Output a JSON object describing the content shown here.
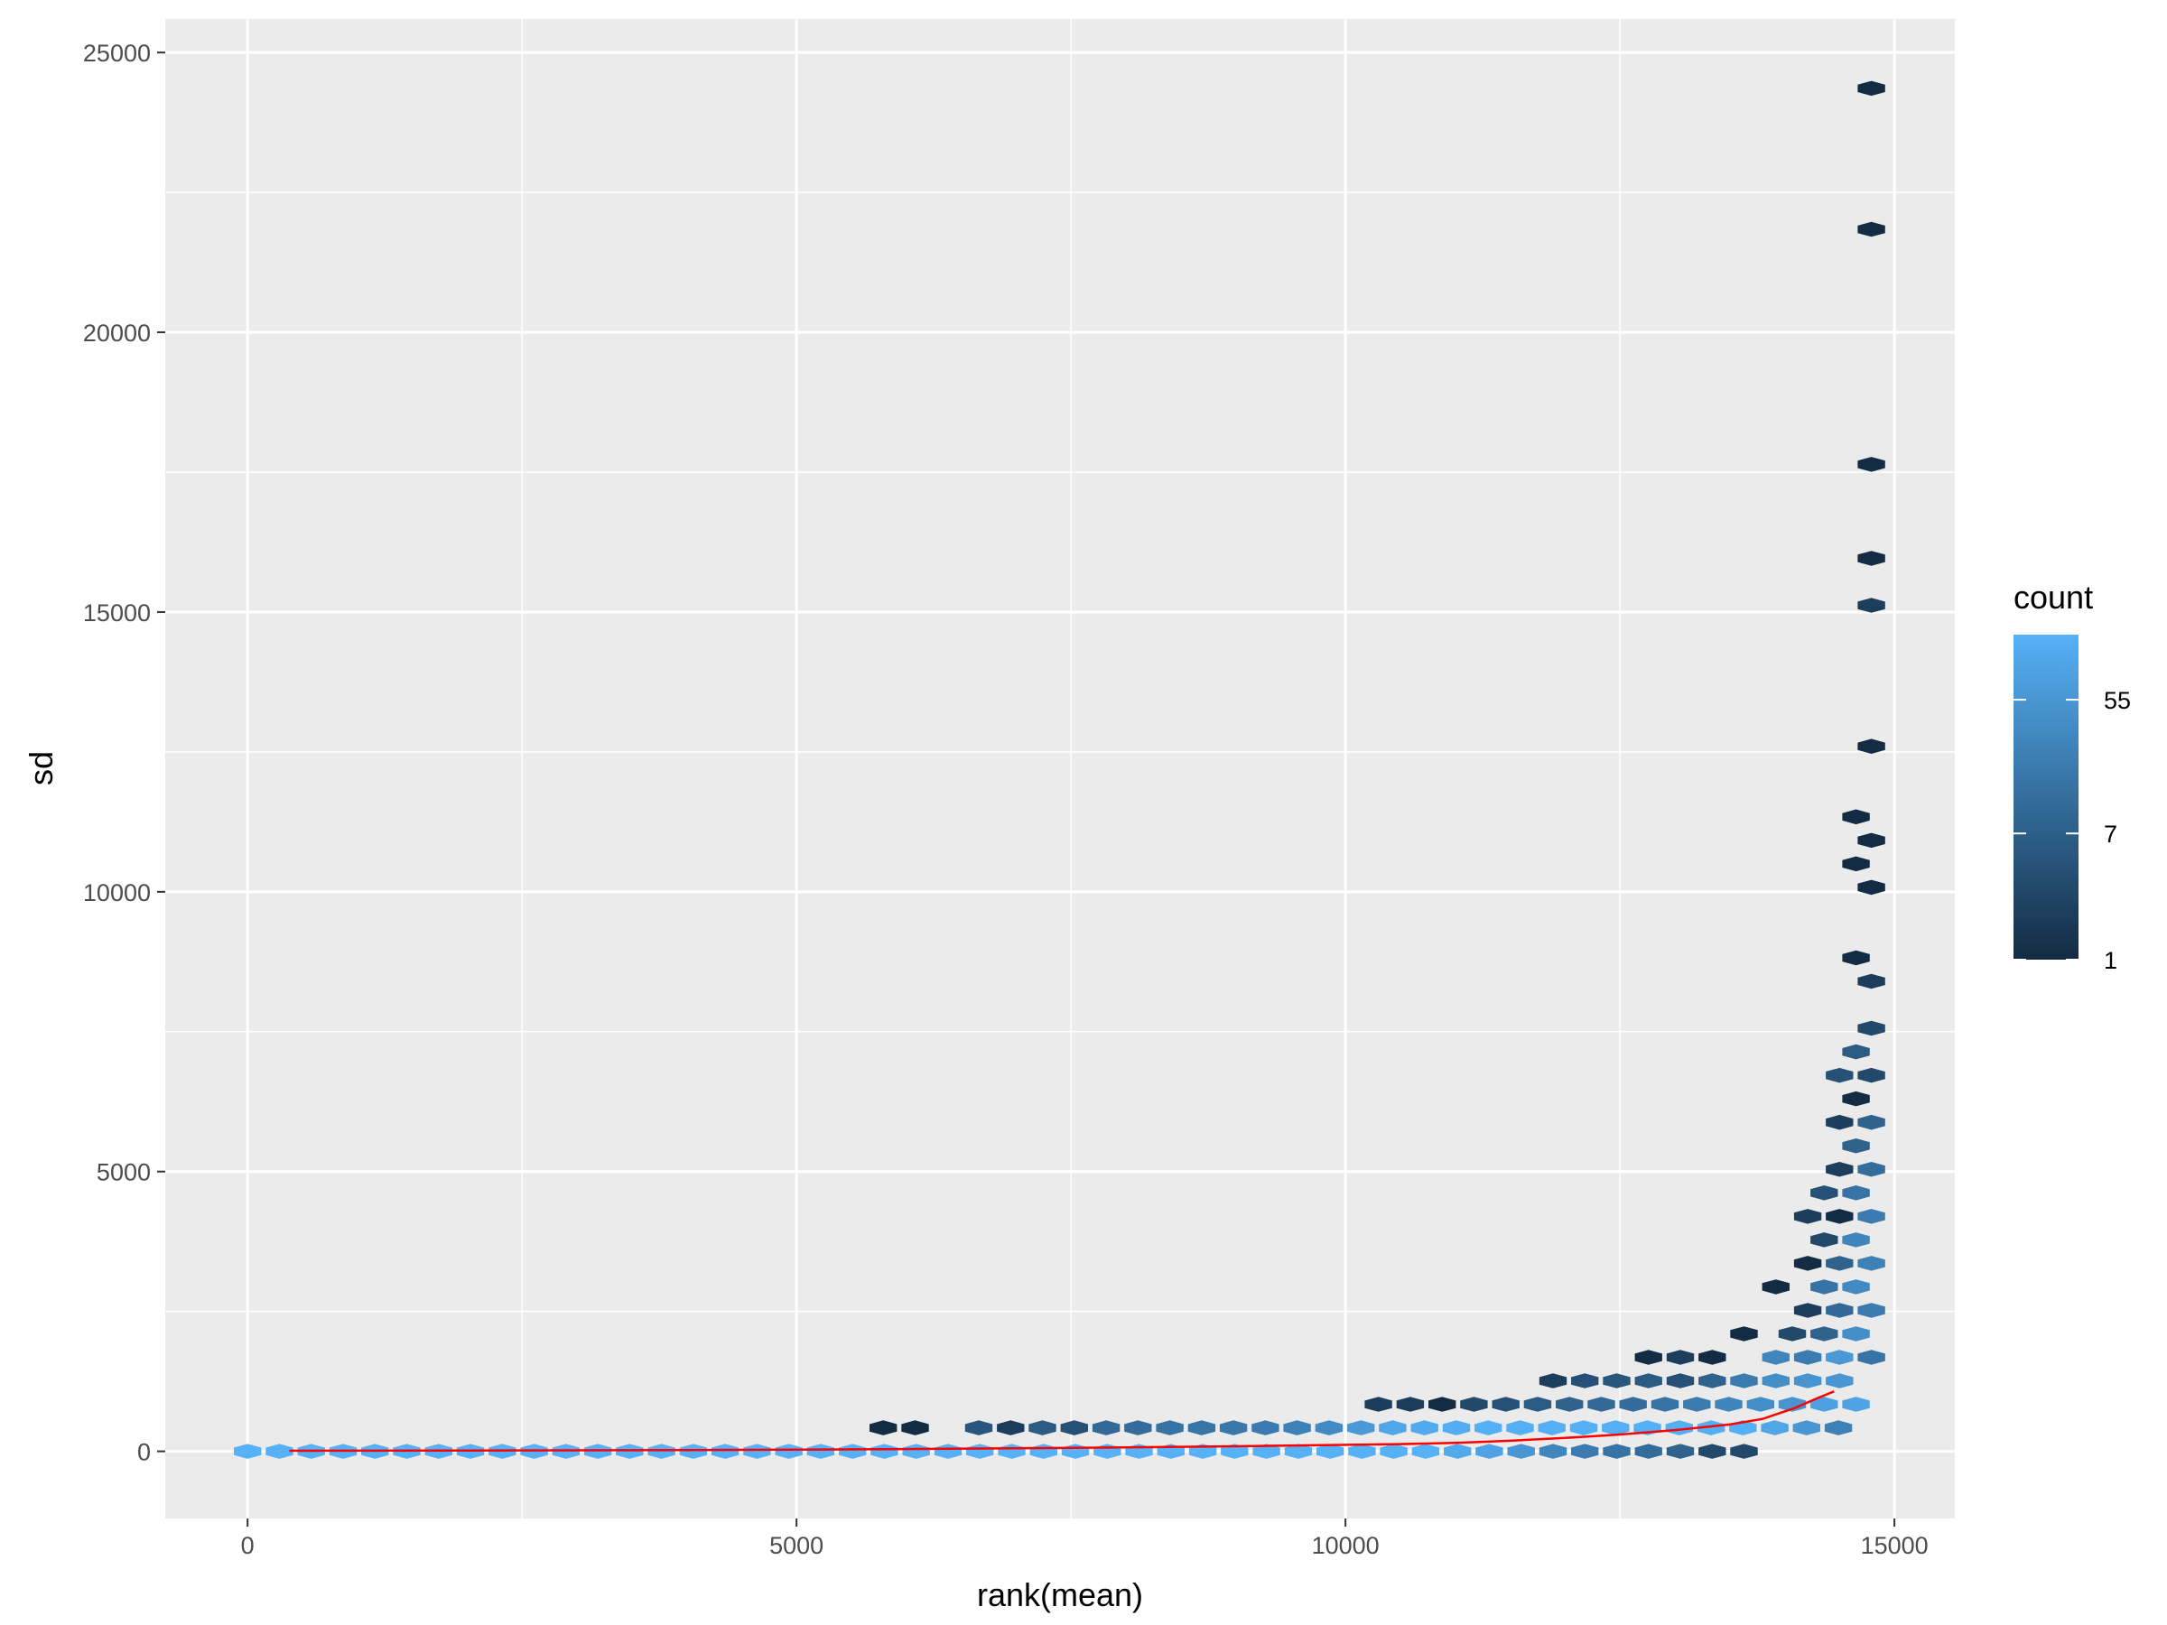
{
  "chart_data": {
    "type": "hexbin",
    "xlabel": "rank(mean)",
    "ylabel": "sd",
    "xlim": [
      -750,
      15550
    ],
    "ylim": [
      -1200,
      25600
    ],
    "x_ticks": [
      0,
      5000,
      10000,
      15000
    ],
    "x_tick_labels": [
      "0",
      "5000",
      "10000",
      "15000"
    ],
    "y_ticks": [
      0,
      5000,
      10000,
      15000,
      20000,
      25000
    ],
    "y_tick_labels": [
      "0",
      "5000",
      "10000",
      "15000",
      "20000",
      "25000"
    ],
    "grid": true,
    "background": "#EBEBEB",
    "hex_size": 250,
    "hex_row_step": 215,
    "colors": {
      "low": "#132B43",
      "high": "#56B1F7"
    },
    "legend": {
      "title": "count",
      "position": "right",
      "scale": "log",
      "min": 1,
      "max": 150,
      "breaks": [
        1,
        7,
        55
      ],
      "labels": [
        "1",
        "7",
        "55"
      ]
    },
    "hexes": [
      {
        "x": 0,
        "y": 0,
        "c": 150
      },
      {
        "x": 290,
        "y": 0,
        "c": 150
      },
      {
        "x": 580,
        "y": 0,
        "c": 150
      },
      {
        "x": 870,
        "y": 0,
        "c": 150
      },
      {
        "x": 1160,
        "y": 0,
        "c": 150
      },
      {
        "x": 1450,
        "y": 0,
        "c": 150
      },
      {
        "x": 1740,
        "y": 0,
        "c": 150
      },
      {
        "x": 2030,
        "y": 0,
        "c": 150
      },
      {
        "x": 2320,
        "y": 0,
        "c": 150
      },
      {
        "x": 2610,
        "y": 0,
        "c": 150
      },
      {
        "x": 2900,
        "y": 0,
        "c": 150
      },
      {
        "x": 3190,
        "y": 0,
        "c": 150
      },
      {
        "x": 3480,
        "y": 0,
        "c": 150
      },
      {
        "x": 3770,
        "y": 0,
        "c": 150
      },
      {
        "x": 4060,
        "y": 0,
        "c": 150
      },
      {
        "x": 4350,
        "y": 0,
        "c": 150
      },
      {
        "x": 4640,
        "y": 0,
        "c": 150
      },
      {
        "x": 4930,
        "y": 0,
        "c": 150
      },
      {
        "x": 5220,
        "y": 0,
        "c": 150
      },
      {
        "x": 5510,
        "y": 0,
        "c": 150
      },
      {
        "x": 5800,
        "y": 0,
        "c": 150
      },
      {
        "x": 6090,
        "y": 0,
        "c": 150
      },
      {
        "x": 6380,
        "y": 0,
        "c": 150
      },
      {
        "x": 6670,
        "y": 0,
        "c": 150
      },
      {
        "x": 6960,
        "y": 0,
        "c": 150
      },
      {
        "x": 7250,
        "y": 0,
        "c": 150
      },
      {
        "x": 7540,
        "y": 0,
        "c": 150
      },
      {
        "x": 7830,
        "y": 0,
        "c": 150
      },
      {
        "x": 8120,
        "y": 0,
        "c": 150
      },
      {
        "x": 8410,
        "y": 0,
        "c": 150
      },
      {
        "x": 8700,
        "y": 0,
        "c": 150
      },
      {
        "x": 8990,
        "y": 0,
        "c": 150
      },
      {
        "x": 9280,
        "y": 0,
        "c": 150
      },
      {
        "x": 9570,
        "y": 0,
        "c": 150
      },
      {
        "x": 9860,
        "y": 0,
        "c": 150
      },
      {
        "x": 10150,
        "y": 0,
        "c": 150
      },
      {
        "x": 10440,
        "y": 0,
        "c": 150
      },
      {
        "x": 10730,
        "y": 0,
        "c": 150
      },
      {
        "x": 11020,
        "y": 0,
        "c": 110
      },
      {
        "x": 11310,
        "y": 0,
        "c": 90
      },
      {
        "x": 11600,
        "y": 0,
        "c": 55
      },
      {
        "x": 11890,
        "y": 0,
        "c": 30
      },
      {
        "x": 12180,
        "y": 0,
        "c": 20
      },
      {
        "x": 12470,
        "y": 0,
        "c": 15
      },
      {
        "x": 12760,
        "y": 0,
        "c": 12
      },
      {
        "x": 13050,
        "y": 0,
        "c": 8
      },
      {
        "x": 13340,
        "y": 0,
        "c": 3
      },
      {
        "x": 13630,
        "y": 0,
        "c": 3
      },
      {
        "x": 5790,
        "y": 420,
        "c": 1
      },
      {
        "x": 6080,
        "y": 420,
        "c": 1
      },
      {
        "x": 6660,
        "y": 420,
        "c": 5
      },
      {
        "x": 6950,
        "y": 420,
        "c": 2
      },
      {
        "x": 7240,
        "y": 420,
        "c": 6
      },
      {
        "x": 7530,
        "y": 420,
        "c": 4
      },
      {
        "x": 7820,
        "y": 420,
        "c": 10
      },
      {
        "x": 8110,
        "y": 420,
        "c": 12
      },
      {
        "x": 8400,
        "y": 420,
        "c": 14
      },
      {
        "x": 8690,
        "y": 420,
        "c": 16
      },
      {
        "x": 8980,
        "y": 420,
        "c": 18
      },
      {
        "x": 9270,
        "y": 420,
        "c": 20
      },
      {
        "x": 9560,
        "y": 420,
        "c": 25
      },
      {
        "x": 9850,
        "y": 420,
        "c": 35
      },
      {
        "x": 10140,
        "y": 420,
        "c": 60
      },
      {
        "x": 10430,
        "y": 420,
        "c": 100
      },
      {
        "x": 10720,
        "y": 420,
        "c": 120
      },
      {
        "x": 11010,
        "y": 420,
        "c": 130
      },
      {
        "x": 11300,
        "y": 420,
        "c": 140
      },
      {
        "x": 11590,
        "y": 420,
        "c": 140
      },
      {
        "x": 11880,
        "y": 420,
        "c": 140
      },
      {
        "x": 12170,
        "y": 420,
        "c": 140
      },
      {
        "x": 12460,
        "y": 420,
        "c": 140
      },
      {
        "x": 12750,
        "y": 420,
        "c": 140
      },
      {
        "x": 13040,
        "y": 420,
        "c": 140
      },
      {
        "x": 13330,
        "y": 420,
        "c": 140
      },
      {
        "x": 13620,
        "y": 420,
        "c": 140
      },
      {
        "x": 13910,
        "y": 420,
        "c": 100
      },
      {
        "x": 14200,
        "y": 420,
        "c": 55
      },
      {
        "x": 14490,
        "y": 420,
        "c": 25
      },
      {
        "x": 10300,
        "y": 840,
        "c": 2
      },
      {
        "x": 10590,
        "y": 840,
        "c": 2
      },
      {
        "x": 10880,
        "y": 840,
        "c": 1
      },
      {
        "x": 11170,
        "y": 840,
        "c": 3
      },
      {
        "x": 11460,
        "y": 840,
        "c": 4
      },
      {
        "x": 11750,
        "y": 840,
        "c": 6
      },
      {
        "x": 12040,
        "y": 840,
        "c": 8
      },
      {
        "x": 12330,
        "y": 840,
        "c": 10
      },
      {
        "x": 12620,
        "y": 840,
        "c": 12
      },
      {
        "x": 12910,
        "y": 840,
        "c": 15
      },
      {
        "x": 13200,
        "y": 840,
        "c": 20
      },
      {
        "x": 13490,
        "y": 840,
        "c": 30
      },
      {
        "x": 13780,
        "y": 840,
        "c": 40
      },
      {
        "x": 14070,
        "y": 840,
        "c": 50
      },
      {
        "x": 14360,
        "y": 840,
        "c": 80
      },
      {
        "x": 14650,
        "y": 840,
        "c": 90
      },
      {
        "x": 11890,
        "y": 1260,
        "c": 2
      },
      {
        "x": 12180,
        "y": 1260,
        "c": 4
      },
      {
        "x": 12470,
        "y": 1260,
        "c": 5
      },
      {
        "x": 12760,
        "y": 1260,
        "c": 6
      },
      {
        "x": 13050,
        "y": 1260,
        "c": 4
      },
      {
        "x": 13340,
        "y": 1260,
        "c": 8
      },
      {
        "x": 13630,
        "y": 1260,
        "c": 20
      },
      {
        "x": 13920,
        "y": 1260,
        "c": 40
      },
      {
        "x": 14210,
        "y": 1260,
        "c": 50
      },
      {
        "x": 14500,
        "y": 1260,
        "c": 55
      },
      {
        "x": 12760,
        "y": 1680,
        "c": 1
      },
      {
        "x": 13050,
        "y": 1680,
        "c": 2
      },
      {
        "x": 13340,
        "y": 1680,
        "c": 1
      },
      {
        "x": 13920,
        "y": 1680,
        "c": 30
      },
      {
        "x": 14210,
        "y": 1680,
        "c": 20
      },
      {
        "x": 14500,
        "y": 1680,
        "c": 60
      },
      {
        "x": 14790,
        "y": 1680,
        "c": 15
      },
      {
        "x": 13630,
        "y": 2100,
        "c": 1
      },
      {
        "x": 14070,
        "y": 2100,
        "c": 3
      },
      {
        "x": 14360,
        "y": 2100,
        "c": 8
      },
      {
        "x": 14650,
        "y": 2100,
        "c": 40
      },
      {
        "x": 14210,
        "y": 2520,
        "c": 2
      },
      {
        "x": 14500,
        "y": 2520,
        "c": 10
      },
      {
        "x": 14790,
        "y": 2520,
        "c": 20
      },
      {
        "x": 13920,
        "y": 2940,
        "c": 1
      },
      {
        "x": 14360,
        "y": 2940,
        "c": 15
      },
      {
        "x": 14650,
        "y": 2940,
        "c": 35
      },
      {
        "x": 14210,
        "y": 3360,
        "c": 1
      },
      {
        "x": 14500,
        "y": 3360,
        "c": 8
      },
      {
        "x": 14790,
        "y": 3360,
        "c": 25
      },
      {
        "x": 14360,
        "y": 3780,
        "c": 3
      },
      {
        "x": 14650,
        "y": 3780,
        "c": 30
      },
      {
        "x": 14210,
        "y": 4200,
        "c": 2
      },
      {
        "x": 14500,
        "y": 4200,
        "c": 1
      },
      {
        "x": 14790,
        "y": 4200,
        "c": 20
      },
      {
        "x": 14360,
        "y": 4620,
        "c": 4
      },
      {
        "x": 14650,
        "y": 4620,
        "c": 15
      },
      {
        "x": 14500,
        "y": 5040,
        "c": 2
      },
      {
        "x": 14790,
        "y": 5040,
        "c": 12
      },
      {
        "x": 14650,
        "y": 5460,
        "c": 8
      },
      {
        "x": 14500,
        "y": 5880,
        "c": 2
      },
      {
        "x": 14790,
        "y": 5880,
        "c": 8
      },
      {
        "x": 14650,
        "y": 6300,
        "c": 1
      },
      {
        "x": 14500,
        "y": 6720,
        "c": 4
      },
      {
        "x": 14790,
        "y": 6720,
        "c": 3
      },
      {
        "x": 14650,
        "y": 7140,
        "c": 6
      },
      {
        "x": 14790,
        "y": 7560,
        "c": 3
      },
      {
        "x": 14790,
        "y": 8400,
        "c": 2
      },
      {
        "x": 14650,
        "y": 8820,
        "c": 1
      },
      {
        "x": 14790,
        "y": 10080,
        "c": 1
      },
      {
        "x": 14650,
        "y": 10500,
        "c": 1
      },
      {
        "x": 14790,
        "y": 10920,
        "c": 1
      },
      {
        "x": 14650,
        "y": 11340,
        "c": 1
      },
      {
        "x": 14790,
        "y": 12600,
        "c": 1
      },
      {
        "x": 14790,
        "y": 15120,
        "c": 2
      },
      {
        "x": 14790,
        "y": 15960,
        "c": 1
      },
      {
        "x": 14790,
        "y": 17640,
        "c": 1
      },
      {
        "x": 14790,
        "y": 21840,
        "c": 1
      },
      {
        "x": 14790,
        "y": 24360,
        "c": 1
      }
    ],
    "trend_line": {
      "color": "#FF0000",
      "x": [
        380,
        1000,
        2000,
        3000,
        4000,
        5000,
        6000,
        7000,
        8000,
        9000,
        9800,
        10500,
        11000,
        11500,
        12000,
        12500,
        13000,
        13500,
        13800,
        14100,
        14300,
        14450
      ],
      "y": [
        10,
        12,
        14,
        18,
        22,
        30,
        40,
        55,
        70,
        90,
        110,
        130,
        150,
        190,
        240,
        300,
        380,
        480,
        580,
        780,
        950,
        1070
      ]
    }
  }
}
